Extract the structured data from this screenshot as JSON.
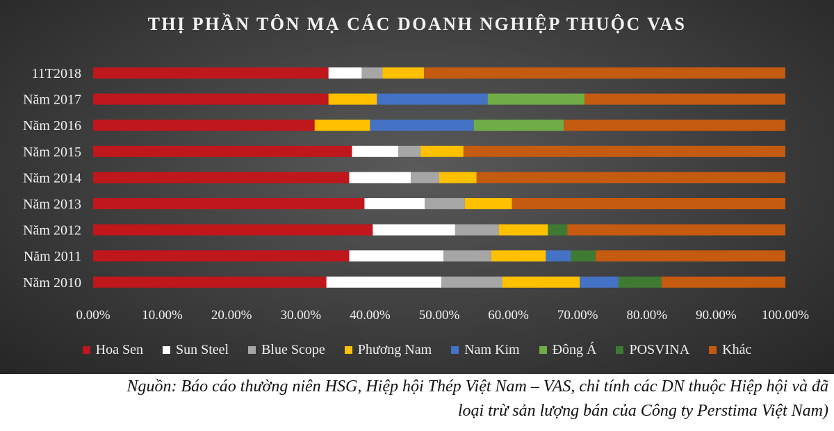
{
  "chart_data": {
    "type": "bar",
    "orientation": "horizontal",
    "stacked": true,
    "percent": true,
    "title": "THỊ PHẦN TÔN MẠ CÁC DOANH NGHIỆP THUỘC VAS",
    "categories": [
      "11T2018",
      "Năm 2017",
      "Năm 2016",
      "Năm 2015",
      "Năm 2014",
      "Năm 2013",
      "Năm 2012",
      "Năm 2011",
      "Năm 2010"
    ],
    "series": [
      {
        "name": "Hoa Sen",
        "color": "#c0171c",
        "values": [
          34.0,
          34.0,
          32.0,
          37.4,
          37.0,
          39.2,
          40.4,
          37.0,
          33.7
        ]
      },
      {
        "name": "Sun Steel",
        "color": "#ffffff",
        "values": [
          4.8,
          0,
          0,
          6.7,
          8.9,
          8.7,
          11.9,
          13.6,
          16.6
        ]
      },
      {
        "name": "Blue Scope",
        "color": "#a6a6a6",
        "values": [
          3.0,
          0,
          0,
          3.2,
          4.1,
          5.8,
          6.3,
          6.9,
          8.8
        ]
      },
      {
        "name": "Phương Nam",
        "color": "#ffc000",
        "values": [
          6.0,
          7.0,
          8.0,
          6.2,
          5.4,
          6.8,
          7.1,
          7.9,
          11.2
        ]
      },
      {
        "name": "Nam Kim",
        "color": "#4472c4",
        "values": [
          0,
          16.0,
          15.0,
          0,
          0,
          0,
          0,
          3.6,
          5.6
        ]
      },
      {
        "name": "Đông Á",
        "color": "#70ad47",
        "values": [
          0,
          14.0,
          13.0,
          0,
          0,
          0,
          0,
          0,
          0
        ]
      },
      {
        "name": "POSVINA",
        "color": "#3f7a33",
        "values": [
          0,
          0,
          0,
          0,
          0,
          0,
          2.8,
          3.6,
          6.2
        ]
      },
      {
        "name": "Khác",
        "color": "#c55a11",
        "values": [
          52.2,
          29.0,
          32.0,
          46.5,
          44.6,
          39.5,
          31.5,
          27.4,
          17.9
        ]
      }
    ],
    "xlim": [
      0,
      100
    ],
    "xticks": [
      "0.00%",
      "10.00%",
      "20.00%",
      "30.00%",
      "40.00%",
      "50.00%",
      "60.00%",
      "70.00%",
      "80.00%",
      "90.00%",
      "100.00%"
    ],
    "legend_position": "bottom",
    "grid": false
  },
  "source_note": {
    "line1": "Nguồn: Báo cáo thường niên HSG, Hiệp hội Thép Việt Nam – VAS, chỉ tính các DN thuộc Hiệp hội và đã",
    "line2": "loại trừ sản lượng bán của Công ty Perstima Việt Nam)"
  }
}
